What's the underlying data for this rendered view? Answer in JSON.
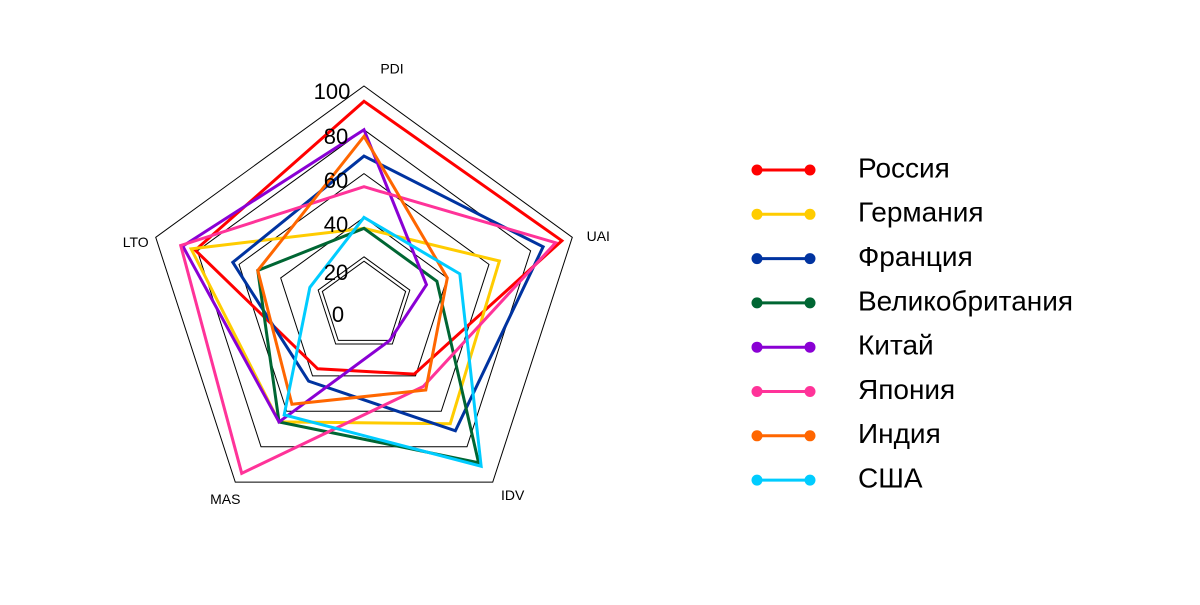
{
  "chart_data": {
    "type": "radar",
    "axes": [
      "PDI",
      "UAI",
      "IDV",
      "MAS",
      "LTO"
    ],
    "rticks": [
      0,
      20,
      40,
      60,
      80,
      100
    ],
    "rlim": [
      0,
      100
    ],
    "grid": true,
    "legend_position": "right",
    "series": [
      {
        "name": "Россия",
        "color": "#ff0000",
        "values": [
          93,
          95,
          39,
          36,
          81
        ]
      },
      {
        "name": "Германия",
        "color": "#ffcc00",
        "values": [
          35,
          65,
          67,
          66,
          83
        ]
      },
      {
        "name": "Франция",
        "color": "#0033a0",
        "values": [
          68,
          86,
          71,
          43,
          63
        ]
      },
      {
        "name": "Великобритания",
        "color": "#006633",
        "values": [
          35,
          35,
          89,
          66,
          51
        ]
      },
      {
        "name": "Китай",
        "color": "#8a00d4",
        "values": [
          80,
          30,
          20,
          66,
          87
        ]
      },
      {
        "name": "Япония",
        "color": "#ff3399",
        "values": [
          54,
          92,
          46,
          95,
          88
        ]
      },
      {
        "name": "Индия",
        "color": "#ff6600",
        "values": [
          77,
          40,
          48,
          56,
          51
        ]
      },
      {
        "name": "США",
        "color": "#00ccff",
        "values": [
          40,
          46,
          91,
          62,
          26
        ]
      }
    ]
  }
}
